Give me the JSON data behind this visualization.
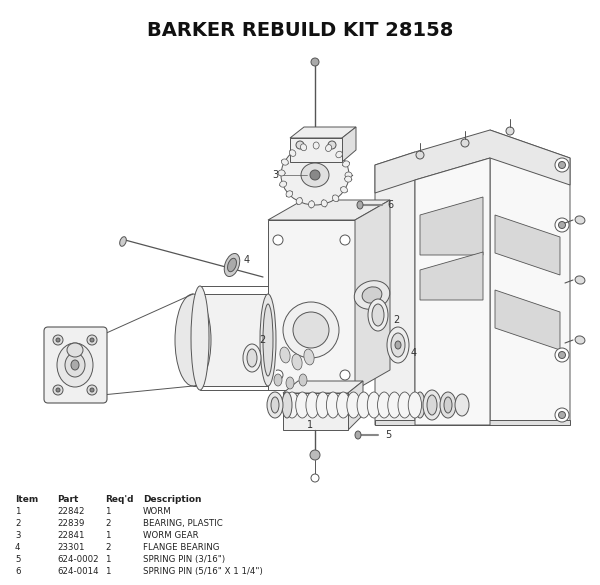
{
  "title": "BARKER REBUILD KIT 28158",
  "bg_color": "#ffffff",
  "line_color": "#555555",
  "table_headers": [
    "Item",
    "Part",
    "Req'd",
    "Description"
  ],
  "table_rows": [
    [
      "1",
      "22842",
      "1",
      "WORM"
    ],
    [
      "2",
      "22839",
      "2",
      "BEARING, PLASTIC"
    ],
    [
      "3",
      "22841",
      "1",
      "WORM GEAR"
    ],
    [
      "4",
      "23301",
      "2",
      "FLANGE BEARING"
    ],
    [
      "5",
      "624-0002",
      "1",
      "SPRING PIN (3/16\")"
    ],
    [
      "6",
      "624-0014",
      "1",
      "SPRING PIN (5/16\" X 1 1/4\")"
    ]
  ],
  "fig_width": 6.0,
  "fig_height": 5.85,
  "dpi": 100
}
